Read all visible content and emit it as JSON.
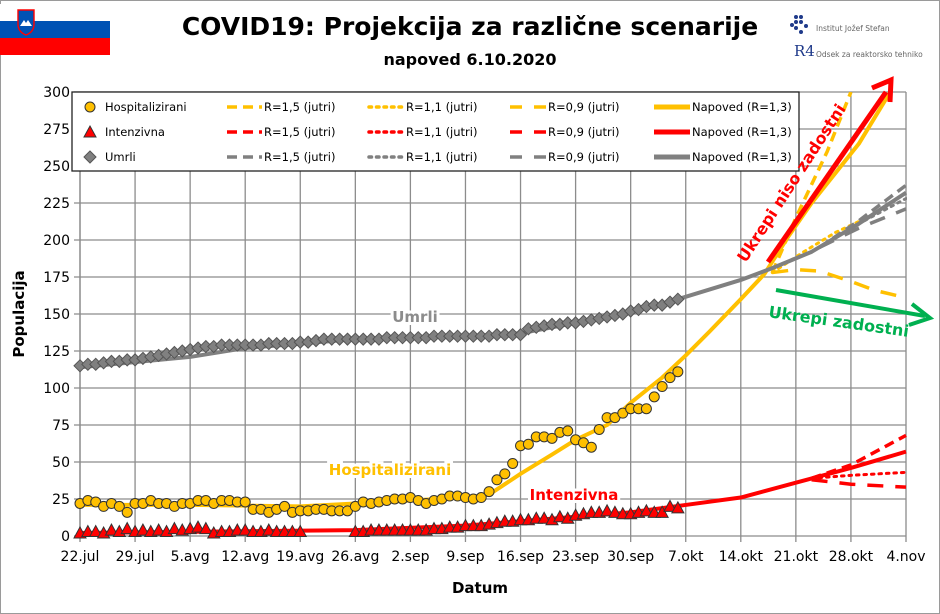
{
  "logo": {
    "institute": "Institut Jožef Stefan",
    "department_mark": "R4",
    "department": "Odsek za reaktorsko tehniko"
  },
  "flag": "slovenia-flag",
  "colors": {
    "hospitalized": "#FFC000",
    "icu": "#FF0000",
    "deaths": "#808080",
    "measures_insufficient": "#FF0000",
    "measures_sufficient": "#00B050"
  },
  "chart_data": {
    "type": "line",
    "title": "COVID19: Projekcija za različne scenarije",
    "subtitle": "napoved 6.10.2020",
    "xlabel": "Datum",
    "ylabel": "Populacija",
    "xlim": [
      "22.jul",
      "4.nov"
    ],
    "ylim": [
      0,
      300
    ],
    "y_ticks": [
      0,
      25,
      50,
      75,
      100,
      125,
      150,
      175,
      200,
      225,
      250,
      275,
      300
    ],
    "x_ticks": [
      "22.jul",
      "29.jul",
      "5.avg",
      "12.avg",
      "19.avg",
      "26.avg",
      "2.sep",
      "9.sep",
      "16.sep",
      "23.sep",
      "30.sep",
      "7.okt",
      "14.okt",
      "21.okt",
      "28.okt",
      "4.nov"
    ],
    "grid": true,
    "legend_position": "top",
    "observed_dates": [
      "22.jul",
      "23.jul",
      "24.jul",
      "25.jul",
      "26.jul",
      "27.jul",
      "28.jul",
      "29.jul",
      "30.jul",
      "31.jul",
      "1.avg",
      "2.avg",
      "3.avg",
      "4.avg",
      "5.avg",
      "6.avg",
      "7.avg",
      "8.avg",
      "9.avg",
      "10.avg",
      "11.avg",
      "12.avg",
      "13.avg",
      "14.avg",
      "15.avg",
      "16.avg",
      "17.avg",
      "18.avg",
      "19.avg",
      "20.avg",
      "21.avg",
      "22.avg",
      "23.avg",
      "24.avg",
      "25.avg",
      "26.avg",
      "27.avg",
      "28.avg",
      "29.avg",
      "30.avg",
      "31.avg",
      "1.sep",
      "2.sep",
      "3.sep",
      "4.sep",
      "5.sep",
      "6.sep",
      "7.sep",
      "8.sep",
      "9.sep",
      "10.sep",
      "11.sep",
      "12.sep",
      "13.sep",
      "14.sep",
      "15.sep",
      "16.sep",
      "17.sep",
      "18.sep",
      "19.sep",
      "20.sep",
      "21.sep",
      "22.sep",
      "23.sep",
      "24.sep",
      "25.sep",
      "26.sep",
      "27.sep",
      "28.sep",
      "29.sep",
      "30.sep",
      "1.okt",
      "2.okt",
      "3.okt",
      "4.okt",
      "5.okt",
      "6.okt"
    ],
    "observed": [
      {
        "name": "Hospitalizirani",
        "key": "hospitalized",
        "marker": "circle",
        "values": [
          22,
          24,
          23,
          20,
          22,
          20,
          16,
          22,
          22,
          24,
          22,
          22,
          20,
          22,
          22,
          24,
          24,
          22,
          24,
          24,
          23,
          23,
          18,
          18,
          16,
          18,
          20,
          16,
          17,
          17,
          18,
          18,
          17,
          17,
          17,
          20,
          23,
          22,
          23,
          24,
          25,
          25,
          26,
          24,
          22,
          24,
          25,
          27,
          27,
          26,
          25,
          26,
          30,
          38,
          42,
          49,
          61,
          62,
          67,
          67,
          66,
          70,
          71,
          65,
          63,
          60,
          72,
          80,
          80,
          83,
          86,
          86,
          86,
          94,
          101,
          107,
          111
        ]
      },
      {
        "name": "Intenzivna",
        "key": "icu",
        "marker": "triangle",
        "values": [
          2,
          3,
          3,
          2,
          4,
          3,
          5,
          3,
          4,
          3,
          4,
          3,
          5,
          4,
          5,
          6,
          5,
          2,
          3,
          3,
          4,
          4,
          3,
          3,
          4,
          3,
          3,
          3,
          3,
          null,
          null,
          null,
          null,
          null,
          null,
          3,
          3,
          4,
          4,
          4,
          4,
          4,
          4,
          4,
          4,
          5,
          5,
          6,
          6,
          7,
          7,
          7,
          8,
          9,
          10,
          10,
          11,
          11,
          12,
          12,
          11,
          13,
          12,
          14,
          15,
          16,
          16,
          17,
          16,
          15,
          15,
          16,
          17,
          16,
          16,
          20,
          19
        ]
      },
      {
        "name": "Umrli",
        "key": "deaths",
        "marker": "diamond",
        "values": [
          115,
          116,
          116,
          117,
          118,
          118,
          119,
          119,
          120,
          121,
          122,
          123,
          124,
          125,
          126,
          127,
          128,
          128,
          129,
          129,
          129,
          129,
          129,
          129,
          130,
          130,
          130,
          130,
          131,
          131,
          132,
          133,
          133,
          133,
          133,
          133,
          133,
          133,
          133,
          134,
          134,
          134,
          134,
          134,
          134,
          135,
          135,
          135,
          135,
          135,
          135,
          135,
          135,
          136,
          136,
          136,
          136,
          140,
          141,
          142,
          143,
          143,
          144,
          144,
          145,
          146,
          147,
          148,
          149,
          150,
          152,
          153,
          155,
          156,
          156,
          158,
          160
        ]
      }
    ],
    "projections": [
      {
        "name": "R=1,5 (jutri)",
        "key": "hospitalized",
        "style": "dash",
        "points": [
          [
            "18.okt",
            178
          ],
          [
            "21.okt",
            215
          ],
          [
            "25.okt",
            260
          ],
          [
            "28.okt",
            300
          ]
        ]
      },
      {
        "name": "R=1,1 (jutri)",
        "key": "hospitalized",
        "style": "dot",
        "points": [
          [
            "18.okt",
            178
          ],
          [
            "22.okt",
            192
          ],
          [
            "26.okt",
            205
          ],
          [
            "30.okt",
            215
          ]
        ]
      },
      {
        "name": "R=0,9 (jutri)",
        "key": "hospitalized",
        "style": "longdash",
        "points": [
          [
            "18.okt",
            178
          ],
          [
            "21.okt",
            180
          ],
          [
            "24.okt",
            179
          ],
          [
            "28.okt",
            172
          ],
          [
            "31.okt",
            166
          ],
          [
            "4.nov",
            161
          ]
        ]
      },
      {
        "name": "Napoved (R=1,3)",
        "key": "hospitalized",
        "style": "solid",
        "points": [
          [
            "22.jul",
            21
          ],
          [
            "5.avg",
            21
          ],
          [
            "19.avg",
            20
          ],
          [
            "26.avg",
            22
          ],
          [
            "2.sep",
            24
          ],
          [
            "9.sep",
            26
          ],
          [
            "12.sep",
            28
          ],
          [
            "16.sep",
            42
          ],
          [
            "20.sep",
            55
          ],
          [
            "23.sep",
            65
          ],
          [
            "27.sep",
            75
          ],
          [
            "30.sep",
            90
          ],
          [
            "4.okt",
            107
          ],
          [
            "7.okt",
            122
          ],
          [
            "10.okt",
            138
          ],
          [
            "14.okt",
            160
          ],
          [
            "17.okt",
            177
          ],
          [
            "20.okt",
            202
          ],
          [
            "23.okt",
            225
          ],
          [
            "26.okt",
            245
          ],
          [
            "29.okt",
            265
          ],
          [
            "2.nov",
            300
          ]
        ]
      },
      {
        "name": "R=1,5 (jutri)",
        "key": "icu",
        "style": "dash",
        "points": [
          [
            "23.okt",
            39
          ],
          [
            "28.okt",
            48
          ],
          [
            "4.nov",
            68
          ]
        ]
      },
      {
        "name": "R=1,1 (jutri)",
        "key": "icu",
        "style": "dot",
        "points": [
          [
            "23.okt",
            39
          ],
          [
            "28.okt",
            41
          ],
          [
            "4.nov",
            43
          ]
        ]
      },
      {
        "name": "R=0,9 (jutri)",
        "key": "icu",
        "style": "longdash",
        "points": [
          [
            "23.okt",
            38
          ],
          [
            "28.okt",
            35
          ],
          [
            "4.nov",
            33
          ]
        ]
      },
      {
        "name": "Napoved (R=1,3)",
        "key": "icu",
        "style": "solid",
        "points": [
          [
            "22.jul",
            2
          ],
          [
            "26.avg",
            4
          ],
          [
            "9.sep",
            7
          ],
          [
            "16.sep",
            10
          ],
          [
            "23.sep",
            13
          ],
          [
            "30.sep",
            16
          ],
          [
            "7.okt",
            21
          ],
          [
            "14.okt",
            26
          ],
          [
            "21.okt",
            36
          ],
          [
            "28.okt",
            46
          ],
          [
            "4.nov",
            57
          ]
        ]
      },
      {
        "name": "R=1,5 (jutri)",
        "key": "deaths",
        "style": "dash",
        "points": [
          [
            "24.okt",
            195
          ],
          [
            "29.okt",
            213
          ],
          [
            "4.nov",
            237
          ]
        ]
      },
      {
        "name": "R=1,1 (jutri)",
        "key": "deaths",
        "style": "dot",
        "points": [
          [
            "24.okt",
            195
          ],
          [
            "29.okt",
            211
          ],
          [
            "4.nov",
            228
          ]
        ]
      },
      {
        "name": "R=0,9 (jutri)",
        "key": "deaths",
        "style": "longdash",
        "points": [
          [
            "24.okt",
            195
          ],
          [
            "29.okt",
            208
          ],
          [
            "4.nov",
            221
          ]
        ]
      },
      {
        "name": "Napoved (R=1,3)",
        "key": "deaths",
        "style": "solid",
        "points": [
          [
            "22.jul",
            114
          ],
          [
            "5.avg",
            121
          ],
          [
            "12.avg",
            127
          ],
          [
            "19.avg",
            130
          ],
          [
            "26.avg",
            133
          ],
          [
            "9.sep",
            135
          ],
          [
            "16.sep",
            137
          ],
          [
            "23.sep",
            144
          ],
          [
            "30.sep",
            151
          ],
          [
            "6.okt",
            160
          ],
          [
            "14.okt",
            173
          ],
          [
            "18.okt",
            181
          ],
          [
            "23.okt",
            192
          ],
          [
            "29.okt",
            211
          ],
          [
            "4.nov",
            232
          ]
        ]
      }
    ],
    "annotations": {
      "deaths_label": "Umrli",
      "hospitalized_label": "Hospitalizirani",
      "icu_label": "Intenzivna",
      "arrow_up": "Ukrepi niso zadostni",
      "arrow_down": "Ukrepi zadostni"
    }
  }
}
